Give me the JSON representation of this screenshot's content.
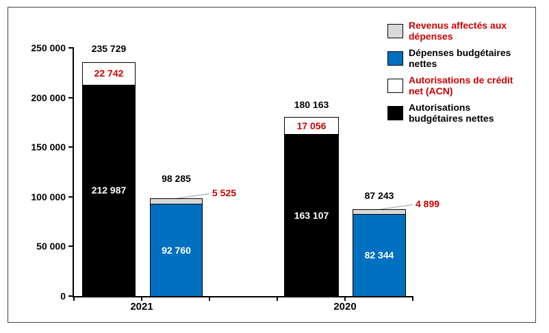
{
  "chart_data": {
    "type": "bar",
    "stacked": true,
    "title": "",
    "xlabel": "",
    "ylabel": "",
    "categories": [
      "2021",
      "2020"
    ],
    "y_axis": {
      "ylim": [
        0,
        250000
      ],
      "tick_values": [
        0,
        50000,
        100000,
        150000,
        200000,
        250000
      ],
      "tick_labels": [
        "0",
        "50 000",
        "100 000",
        "150 000",
        "200 000",
        "250 000"
      ],
      "grid": false
    },
    "legend": {
      "position": "top-right",
      "items": [
        {
          "lines": [
            "Revenus affectés aux",
            "dépenses"
          ],
          "swatch_color": "#D9D9D9",
          "text_color": "#CC0000"
        },
        {
          "lines": [
            "Dépenses budgétaires",
            "nettes"
          ],
          "swatch_color": "#0070C0",
          "text_color": "#000000"
        },
        {
          "lines": [
            "Autorisations de crédit",
            "net (ACN)"
          ],
          "swatch_color": "#FFFFFF",
          "text_color": "#CC0000"
        },
        {
          "lines": [
            "Autorisations",
            "budgétaires nettes"
          ],
          "swatch_color": "#000000",
          "text_color": "#000000"
        }
      ]
    },
    "groups": [
      {
        "category": "2021",
        "bars": [
          {
            "total": 235729,
            "total_label": "235 729",
            "segments": [
              {
                "series": "Autorisations budgétaires nettes",
                "value": 212987,
                "label": "212 987",
                "color": "#000000",
                "label_color": "#FFFFFF"
              },
              {
                "series": "Autorisations de crédit net (ACN)",
                "value": 22742,
                "label": "22 742",
                "color": "#FFFFFF",
                "label_color": "#CC0000"
              }
            ]
          },
          {
            "total": 98285,
            "total_label": "98 285",
            "segments": [
              {
                "series": "Dépenses budgétaires nettes",
                "value": 92760,
                "label": "92 760",
                "color": "#0070C0",
                "label_color": "#FFFFFF"
              },
              {
                "series": "Revenus affectés aux dépenses",
                "value": 5525,
                "label": "5 525",
                "color": "#D9D9D9",
                "label_color": "#CC0000",
                "callout": true
              }
            ]
          }
        ]
      },
      {
        "category": "2020",
        "bars": [
          {
            "total": 180163,
            "total_label": "180 163",
            "segments": [
              {
                "series": "Autorisations budgétaires nettes",
                "value": 163107,
                "label": "163 107",
                "color": "#000000",
                "label_color": "#FFFFFF"
              },
              {
                "series": "Autorisations de crédit net (ACN)",
                "value": 17056,
                "label": "17 056",
                "color": "#FFFFFF",
                "label_color": "#CC0000"
              }
            ]
          },
          {
            "total": 87243,
            "total_label": "87 243",
            "segments": [
              {
                "series": "Dépenses budgétaires nettes",
                "value": 82344,
                "label": "82 344",
                "color": "#0070C0",
                "label_color": "#FFFFFF"
              },
              {
                "series": "Revenus affectés aux dépenses",
                "value": 4899,
                "label": "4 899",
                "color": "#D9D9D9",
                "label_color": "#CC0000",
                "callout": true
              }
            ]
          }
        ]
      }
    ],
    "colors": {
      "accent_red_label": "#CC0000",
      "series_blue": "#0070C0",
      "series_gray": "#D9D9D9",
      "series_black": "#000000",
      "leader_line": "#A6A6A6"
    }
  }
}
